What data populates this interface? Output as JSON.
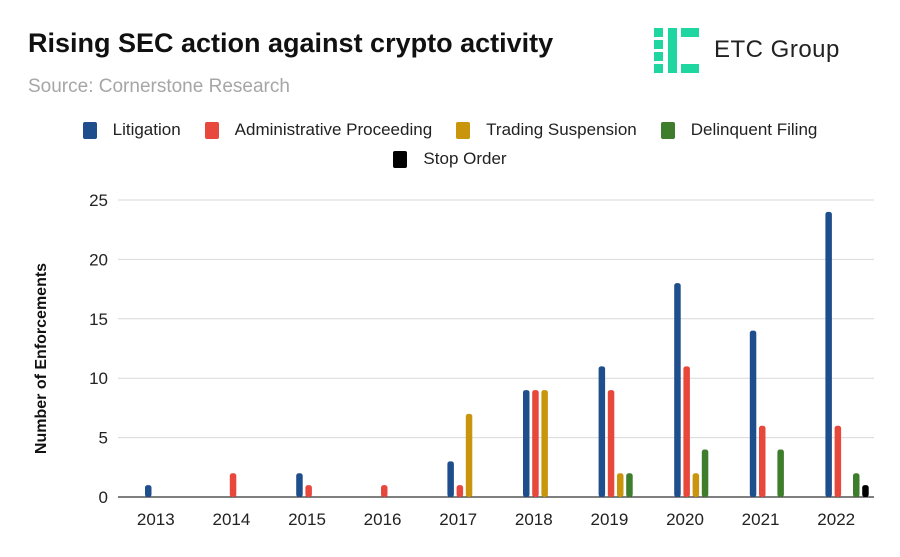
{
  "header": {
    "title": "Rising SEC action against crypto activity",
    "subtitle": "Source: Cornerstone Research",
    "logo_text": "ETC Group",
    "logo_color": "#1fd6a0"
  },
  "chart_data": {
    "type": "bar",
    "title": "Rising SEC action against crypto activity",
    "xlabel": "",
    "ylabel": "Number of Enforcements",
    "ylim": [
      0,
      25
    ],
    "yticks": [
      0,
      5,
      10,
      15,
      20,
      25
    ],
    "grid": true,
    "legend_position": "top",
    "categories": [
      "2013",
      "2014",
      "2015",
      "2016",
      "2017",
      "2018",
      "2019",
      "2020",
      "2021",
      "2022"
    ],
    "series": [
      {
        "name": "Litigation",
        "color": "#1f4e8c",
        "values": [
          1,
          0,
          2,
          0,
          3,
          9,
          11,
          18,
          14,
          24
        ]
      },
      {
        "name": "Administrative Proceeding",
        "color": "#e8473b",
        "values": [
          0,
          2,
          1,
          1,
          1,
          9,
          9,
          11,
          6,
          6
        ]
      },
      {
        "name": "Trading Suspension",
        "color": "#c9950c",
        "values": [
          0,
          0,
          0,
          0,
          7,
          9,
          2,
          2,
          0,
          0
        ]
      },
      {
        "name": "Delinquent Filing",
        "color": "#3e7d2b",
        "values": [
          0,
          0,
          0,
          0,
          0,
          0,
          2,
          4,
          4,
          2
        ]
      },
      {
        "name": "Stop Order",
        "color": "#000000",
        "values": [
          0,
          0,
          0,
          0,
          0,
          0,
          0,
          0,
          0,
          1
        ]
      }
    ]
  }
}
